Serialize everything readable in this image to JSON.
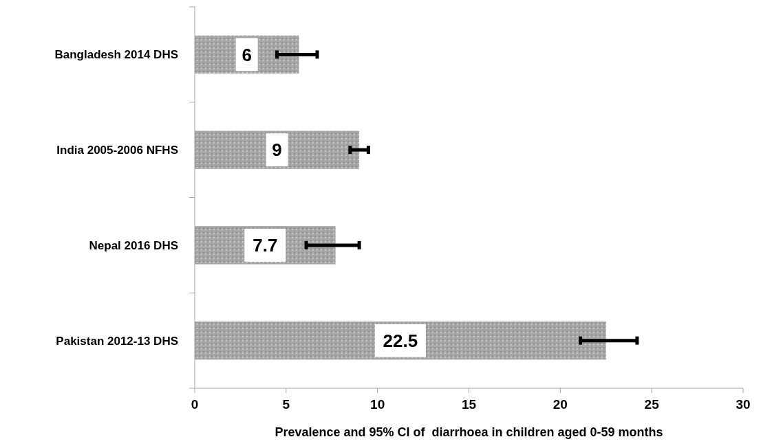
{
  "chart_data": {
    "type": "bar",
    "orientation": "horizontal",
    "xlabel": "Prevalence and 95% CI of  diarrhoea in children aged 0-59 months",
    "categories": [
      "Bangladesh 2014 DHS",
      "India 2005-2006 NFHS",
      "Nepal 2016 DHS",
      "Pakistan 2012-13 DHS"
    ],
    "values": [
      5.7,
      9.0,
      7.7,
      22.5
    ],
    "value_labels": [
      "6",
      "9",
      "7.7",
      "22.5"
    ],
    "errors": [
      [
        4.5,
        6.7
      ],
      [
        8.5,
        9.5
      ],
      [
        6.1,
        9.0
      ],
      [
        21.1,
        24.2
      ]
    ],
    "color": "#a6a6a6",
    "xlim": [
      0,
      30
    ],
    "xticks": [
      0,
      5,
      10,
      15,
      20,
      25,
      30
    ],
    "grid": false
  }
}
